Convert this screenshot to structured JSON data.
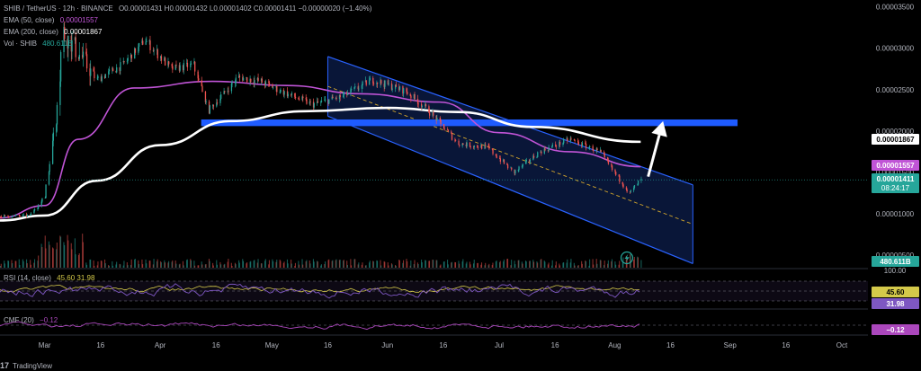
{
  "legend": {
    "symbol": "SHIB / TetherUS",
    "interval": "12h",
    "exchange": "BINANCE",
    "ohlc": "O0.00001431 H0.00001432 L0.00001402 C0.00001411 −0.00000020 (−1.40%)",
    "ema50_label": "EMA (50, close)",
    "ema50_value": "0.00001557",
    "ema200_label": "EMA (200, close)",
    "ema200_value": "0.00001867",
    "vol_label": "Vol · SHIB",
    "vol_value": "480.611B",
    "rsi_label": "RSI (14, close)",
    "rsi_values": "45.60  31.98",
    "cmf_label": "CMF (20)",
    "cmf_value": "−0.12"
  },
  "price_tags": {
    "ema200": "0.00001867",
    "ema50": "0.00001557",
    "last": "0.00001411",
    "countdown": "08:24:17",
    "volume": "480.611B",
    "rsi_max": "100.00",
    "rsi": "45.60",
    "rsi_ma": "31.98",
    "cmf": "−0.12"
  },
  "branding": {
    "logo_text": "TradingView"
  },
  "colors": {
    "background": "#000000",
    "up": "#26a69a",
    "down": "#ef5350",
    "ema50": "#c054d6",
    "ema200": "#ffffff",
    "channel": "#2962ff",
    "resistance": "#1e5bff",
    "rsi": "#7e57c2",
    "cmf": "#ab47bc"
  },
  "chart_data": {
    "type": "line",
    "subtype": "candlestick",
    "y_ticks": [
      "0.00003500",
      "0.00003000",
      "0.00002500",
      "0.00002000",
      "0.00001500",
      "0.00001000",
      "0.00000500"
    ],
    "x_ticks": [
      "Mar",
      "16",
      "Apr",
      "16",
      "May",
      "16",
      "Jun",
      "16",
      "Jul",
      "16",
      "Aug",
      "16",
      "Sep",
      "16",
      "Oct"
    ],
    "ylim": [
      3.5e-06,
      3.55e-05
    ],
    "grid": false,
    "legend_position": "top-left",
    "x_date_range": [
      "2024-02-18",
      "2024-10-08"
    ],
    "price_path": [
      [
        "2024-02-18",
        9.7e-06
      ],
      [
        "2024-02-26",
        9.8e-06
      ],
      [
        "2024-03-01",
        1.2e-05
      ],
      [
        "2024-03-04",
        2.15e-05
      ],
      [
        "2024-03-06",
        3.2e-05
      ],
      [
        "2024-03-10",
        2.95e-05
      ],
      [
        "2024-03-15",
        2.62e-05
      ],
      [
        "2024-03-22",
        2.8e-05
      ],
      [
        "2024-03-28",
        3.1e-05
      ],
      [
        "2024-04-04",
        2.75e-05
      ],
      [
        "2024-04-10",
        2.8e-05
      ],
      [
        "2024-04-14",
        2.25e-05
      ],
      [
        "2024-04-22",
        2.65e-05
      ],
      [
        "2024-04-28",
        2.6e-05
      ],
      [
        "2024-05-05",
        2.45e-05
      ],
      [
        "2024-05-12",
        2.32e-05
      ],
      [
        "2024-05-20",
        2.42e-05
      ],
      [
        "2024-05-28",
        2.62e-05
      ],
      [
        "2024-06-06",
        2.48e-05
      ],
      [
        "2024-06-12",
        2.25e-05
      ],
      [
        "2024-06-20",
        1.85e-05
      ],
      [
        "2024-06-28",
        1.8e-05
      ],
      [
        "2024-07-05",
        1.5e-05
      ],
      [
        "2024-07-12",
        1.75e-05
      ],
      [
        "2024-07-20",
        1.9e-05
      ],
      [
        "2024-07-28",
        1.75e-05
      ],
      [
        "2024-08-05",
        1.25e-05
      ],
      [
        "2024-08-08",
        1.41e-05
      ]
    ],
    "series": [
      {
        "name": "EMA (50, close)",
        "points": [
          [
            "2024-02-18",
            9.5e-06
          ],
          [
            "2024-03-01",
            1.1e-05
          ],
          [
            "2024-03-10",
            1.9e-05
          ],
          [
            "2024-03-25",
            2.52e-05
          ],
          [
            "2024-04-15",
            2.6e-05
          ],
          [
            "2024-05-05",
            2.55e-05
          ],
          [
            "2024-05-25",
            2.45e-05
          ],
          [
            "2024-06-15",
            2.35e-05
          ],
          [
            "2024-07-01",
            1.98e-05
          ],
          [
            "2024-07-20",
            1.75e-05
          ],
          [
            "2024-08-08",
            1.57e-05
          ]
        ]
      },
      {
        "name": "EMA (200, close)",
        "points": [
          [
            "2024-02-18",
            9.2e-06
          ],
          [
            "2024-03-01",
            9.8e-06
          ],
          [
            "2024-03-15",
            1.4e-05
          ],
          [
            "2024-04-01",
            1.83e-05
          ],
          [
            "2024-04-20",
            2.12e-05
          ],
          [
            "2024-05-10",
            2.24e-05
          ],
          [
            "2024-06-01",
            2.28e-05
          ],
          [
            "2024-06-20",
            2.23e-05
          ],
          [
            "2024-07-10",
            2.05e-05
          ],
          [
            "2024-08-08",
            1.87e-05
          ]
        ]
      }
    ],
    "annotations": {
      "channel": {
        "upper": [
          [
            "2024-05-16",
            2.9e-05
          ],
          [
            "2024-08-22",
            1.35e-05
          ]
        ],
        "lower": [
          [
            "2024-05-16",
            2.18e-05
          ],
          [
            "2024-08-22",
            4e-06
          ]
        ]
      },
      "resistance_zone": {
        "from": "2024-04-12",
        "to": "2024-09-03",
        "y_range": [
          2.06e-05,
          2.14e-05
        ]
      },
      "arrow": {
        "from": [
          "2024-08-10",
          1.45e-05
        ],
        "to": [
          "2024-08-14",
          2.12e-05
        ]
      }
    }
  }
}
